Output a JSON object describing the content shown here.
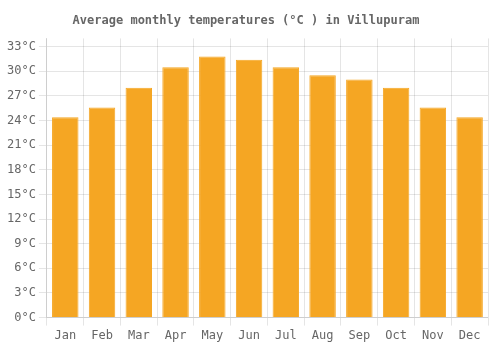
{
  "chart_data": {
    "type": "bar",
    "title": "Average monthly temperatures (°C ) in Villupuram",
    "categories": [
      "Jan",
      "Feb",
      "Mar",
      "Apr",
      "May",
      "Jun",
      "Jul",
      "Aug",
      "Sep",
      "Oct",
      "Nov",
      "Dec"
    ],
    "values": [
      24.4,
      25.6,
      28.0,
      30.5,
      31.8,
      31.4,
      30.5,
      29.5,
      29.0,
      28.0,
      25.6,
      24.4
    ],
    "color": "#F5A623",
    "ylim": [
      0,
      34
    ],
    "yticks": [
      {
        "value": 0,
        "label": "0°C"
      },
      {
        "value": 3,
        "label": "3°C"
      },
      {
        "value": 6,
        "label": "6°C"
      },
      {
        "value": 9,
        "label": "9°C"
      },
      {
        "value": 12,
        "label": "12°C"
      },
      {
        "value": 15,
        "label": "15°C"
      },
      {
        "value": 18,
        "label": "18°C"
      },
      {
        "value": 21,
        "label": "21°C"
      },
      {
        "value": 24,
        "label": "24°C"
      },
      {
        "value": 27,
        "label": "27°C"
      },
      {
        "value": 30,
        "label": "30°C"
      },
      {
        "value": 33,
        "label": "33°C"
      }
    ],
    "grid": true
  }
}
